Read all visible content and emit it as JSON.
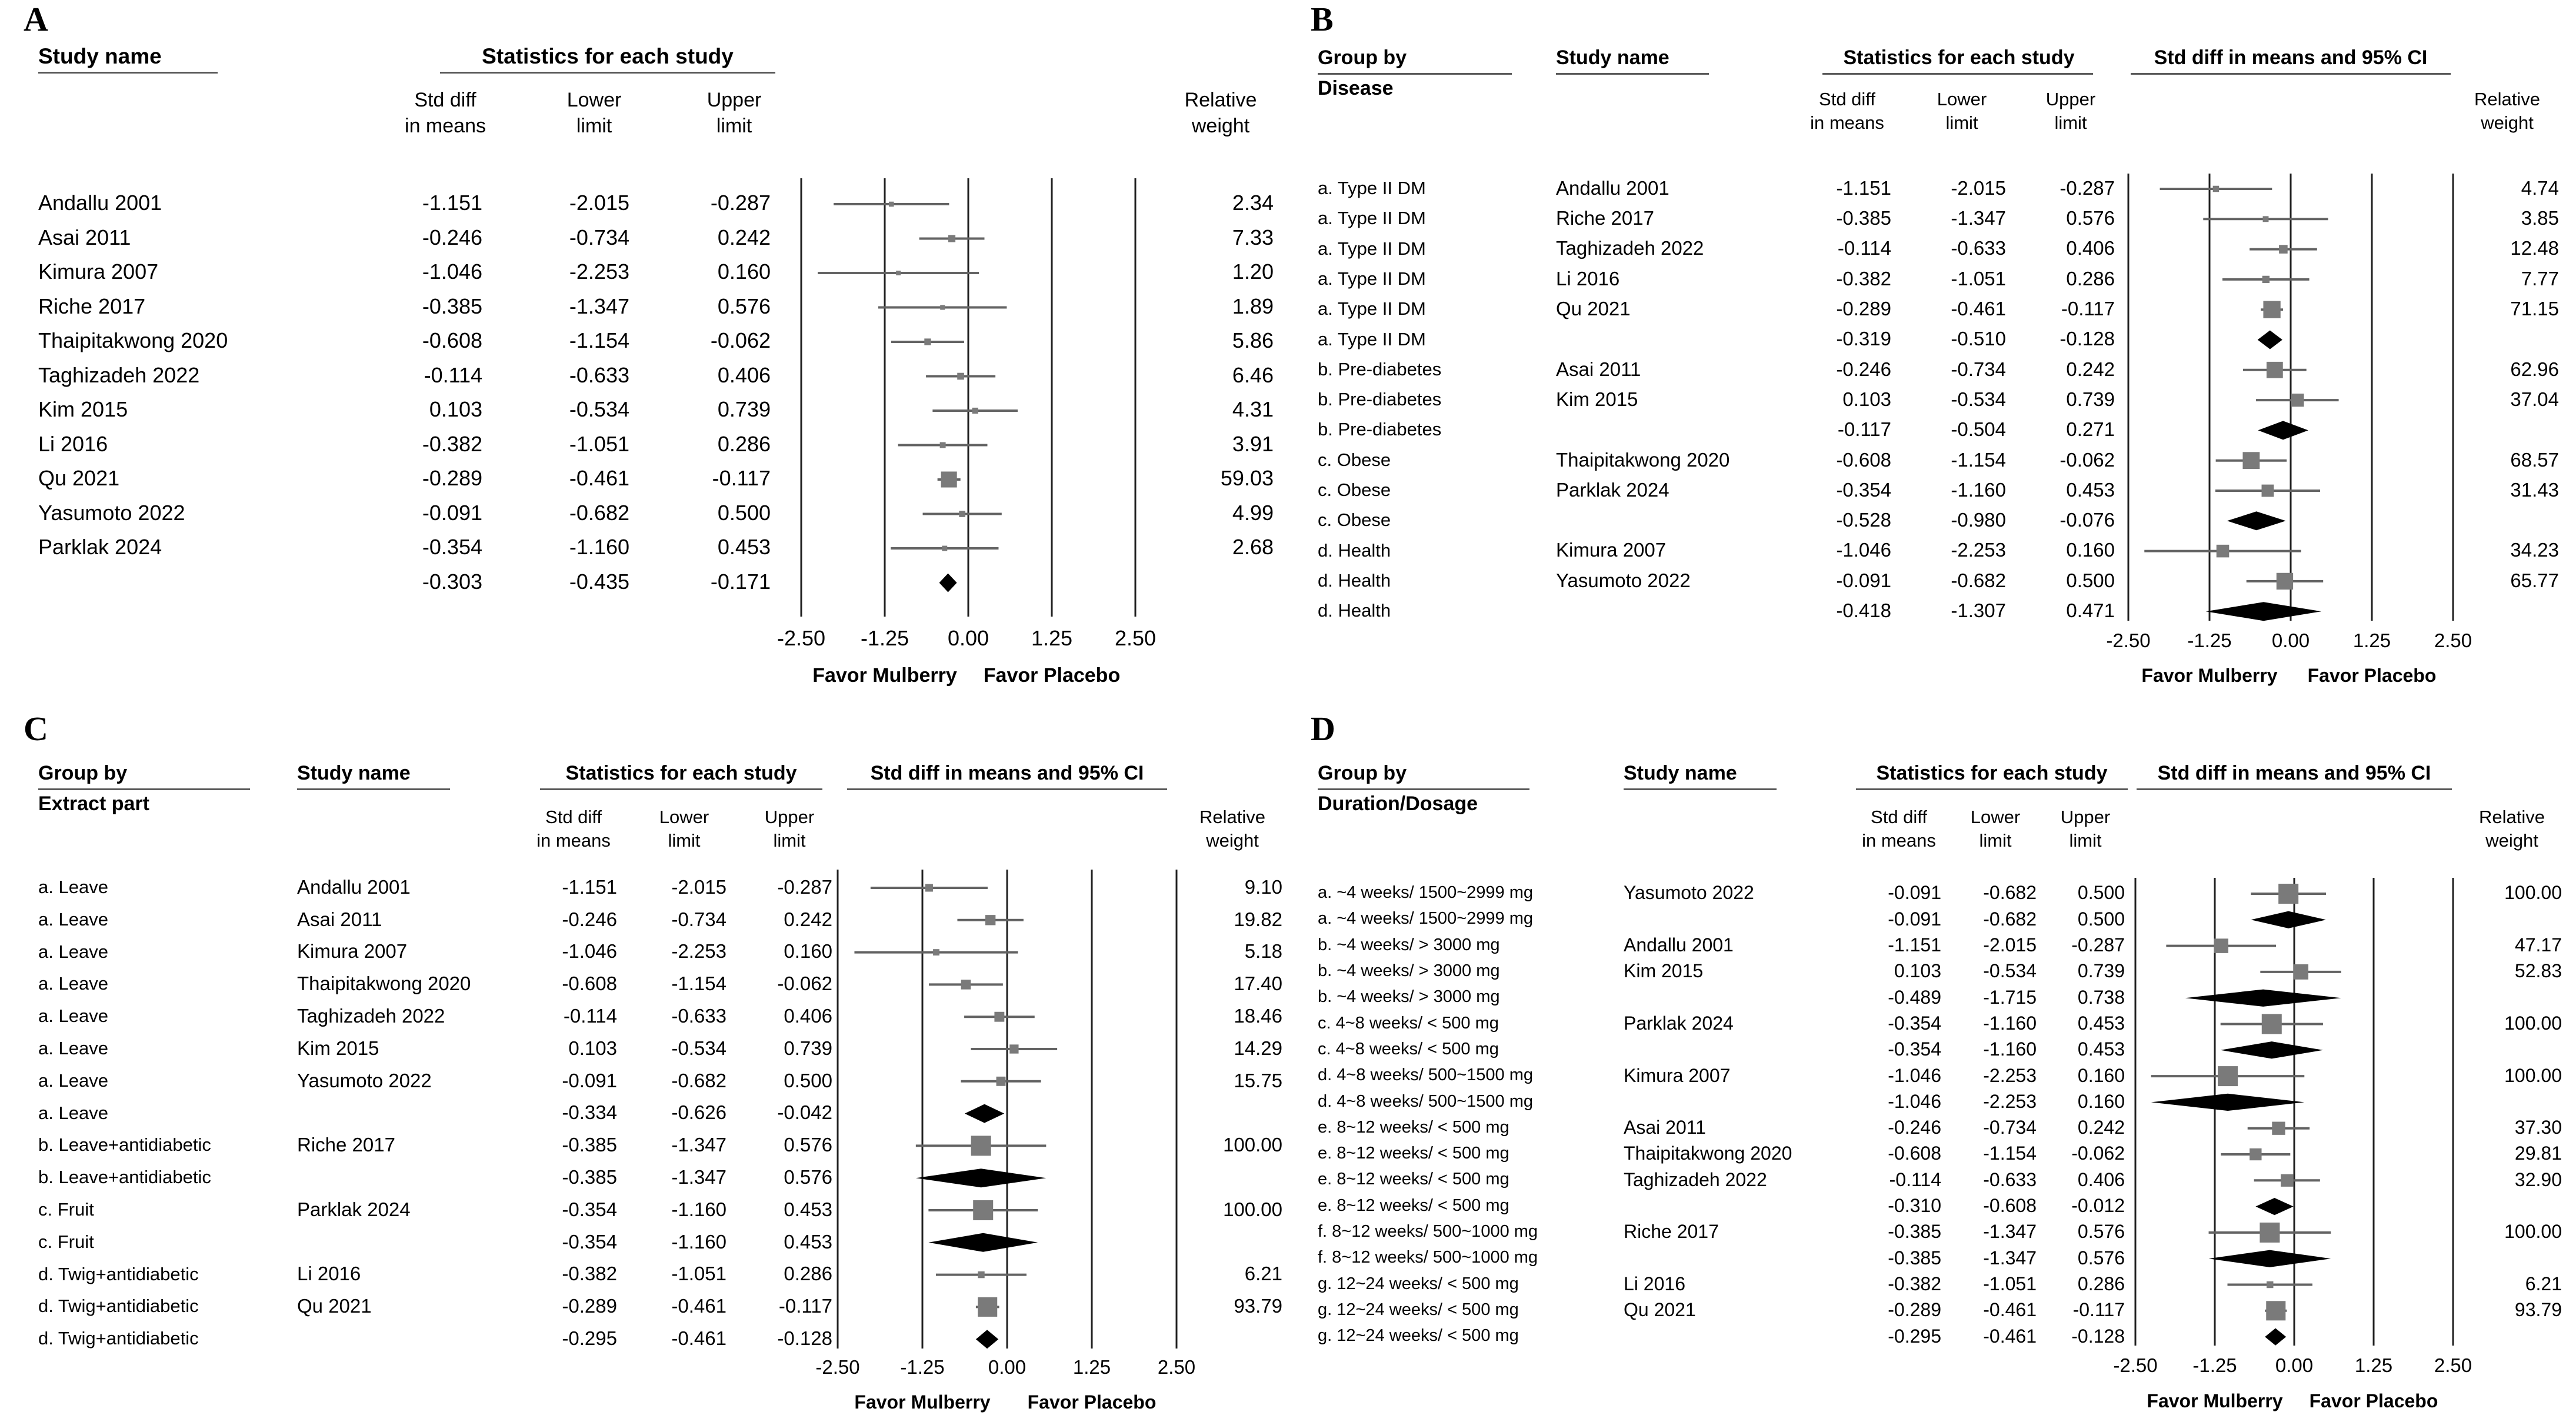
{
  "figure": {
    "panels": [
      {
        "letter": "A",
        "headers": {
          "group": null,
          "group_label": null,
          "study": "Study name",
          "stats": "Statistics for each study",
          "ci": null,
          "sub": [
            "Std diff",
            "in means",
            "Lower",
            "limit",
            "Upper",
            "limit"
          ],
          "weight": [
            "Relative",
            "weight"
          ]
        },
        "axis": {
          "tick_labels": [
            "-2.50",
            "-1.25",
            "0.00",
            "1.25",
            "2.50"
          ],
          "favor_left": "Favor Mulberry",
          "favor_right": "Favor Placebo"
        }
      },
      {
        "letter": "B",
        "headers": {
          "group": "Group by",
          "group_label": "Disease",
          "study": "Study name",
          "stats": "Statistics for each study",
          "ci": "Std diff in means and 95% CI",
          "sub": [
            "Std diff",
            "in means",
            "Lower",
            "limit",
            "Upper",
            "limit"
          ],
          "weight": [
            "Relative",
            "weight"
          ]
        },
        "axis": {
          "tick_labels": [
            "-2.50",
            "-1.25",
            "0.00",
            "1.25",
            "2.50"
          ],
          "favor_left": "Favor Mulberry",
          "favor_right": "Favor Placebo"
        }
      },
      {
        "letter": "C",
        "headers": {
          "group": "Group by",
          "group_label": "Extract part",
          "study": "Study name",
          "stats": "Statistics for each study",
          "ci": "Std diff in means and 95% CI",
          "sub": [
            "Std diff",
            "in means",
            "Lower",
            "limit",
            "Upper",
            "limit"
          ],
          "weight": [
            "Relative",
            "weight"
          ]
        },
        "axis": {
          "tick_labels": [
            "-2.50",
            "-1.25",
            "0.00",
            "1.25",
            "2.50"
          ],
          "favor_left": "Favor Mulberry",
          "favor_right": "Favor Placebo"
        }
      },
      {
        "letter": "D",
        "headers": {
          "group": "Group by",
          "group_label": "Duration/Dosage",
          "study": "Study name",
          "stats": "Statistics for each study",
          "ci": "Std diff in means and 95% CI",
          "sub": [
            "Std diff",
            "in means",
            "Lower",
            "limit",
            "Upper",
            "limit"
          ],
          "weight": [
            "Relative",
            "weight"
          ]
        },
        "axis": {
          "tick_labels": [
            "-2.50",
            "-1.25",
            "0.00",
            "1.25",
            "2.50"
          ],
          "favor_left": "Favor Mulberry",
          "favor_right": "Favor Placebo"
        }
      }
    ]
  },
  "chart_data": [
    {
      "type": "forest",
      "panel": "A",
      "group_by": null,
      "effect_measure": "Std diff in means",
      "xlim": [
        -2.5,
        2.5
      ],
      "x_ticks": [
        -2.5,
        -1.25,
        0,
        1.25,
        2.5
      ],
      "rows": [
        {
          "group": null,
          "study": "Andallu 2001",
          "est": -1.151,
          "lo": -2.015,
          "hi": -0.287,
          "weight": 2.34,
          "summary": false
        },
        {
          "group": null,
          "study": "Asai 2011",
          "est": -0.246,
          "lo": -0.734,
          "hi": 0.242,
          "weight": 7.33,
          "summary": false
        },
        {
          "group": null,
          "study": "Kimura 2007",
          "est": -1.046,
          "lo": -2.253,
          "hi": 0.16,
          "weight": 1.2,
          "summary": false
        },
        {
          "group": null,
          "study": "Riche 2017",
          "est": -0.385,
          "lo": -1.347,
          "hi": 0.576,
          "weight": 1.89,
          "summary": false
        },
        {
          "group": null,
          "study": "Thaipitakwong 2020",
          "est": -0.608,
          "lo": -1.154,
          "hi": -0.062,
          "weight": 5.86,
          "summary": false
        },
        {
          "group": null,
          "study": "Taghizadeh 2022",
          "est": -0.114,
          "lo": -0.633,
          "hi": 0.406,
          "weight": 6.46,
          "summary": false
        },
        {
          "group": null,
          "study": "Kim 2015",
          "est": 0.103,
          "lo": -0.534,
          "hi": 0.739,
          "weight": 4.31,
          "summary": false
        },
        {
          "group": null,
          "study": "Li 2016",
          "est": -0.382,
          "lo": -1.051,
          "hi": 0.286,
          "weight": 3.91,
          "summary": false
        },
        {
          "group": null,
          "study": "Qu 2021",
          "est": -0.289,
          "lo": -0.461,
          "hi": -0.117,
          "weight": 59.03,
          "summary": false
        },
        {
          "group": null,
          "study": "Yasumoto 2022",
          "est": -0.091,
          "lo": -0.682,
          "hi": 0.5,
          "weight": 4.99,
          "summary": false
        },
        {
          "group": null,
          "study": "Parklak 2024",
          "est": -0.354,
          "lo": -1.16,
          "hi": 0.453,
          "weight": 2.68,
          "summary": false
        },
        {
          "group": null,
          "study": null,
          "est": -0.303,
          "lo": -0.435,
          "hi": -0.171,
          "weight": null,
          "summary": true
        }
      ]
    },
    {
      "type": "forest",
      "panel": "B",
      "group_by": "Disease",
      "effect_measure": "Std diff in means",
      "xlim": [
        -2.5,
        2.5
      ],
      "x_ticks": [
        -2.5,
        -1.25,
        0,
        1.25,
        2.5
      ],
      "rows": [
        {
          "group": "a. Type II DM",
          "study": "Andallu 2001",
          "est": -1.151,
          "lo": -2.015,
          "hi": -0.287,
          "weight": 4.74,
          "summary": false
        },
        {
          "group": "a. Type II DM",
          "study": "Riche 2017",
          "est": -0.385,
          "lo": -1.347,
          "hi": 0.576,
          "weight": 3.85,
          "summary": false
        },
        {
          "group": "a. Type II DM",
          "study": "Taghizadeh 2022",
          "est": -0.114,
          "lo": -0.633,
          "hi": 0.406,
          "weight": 12.48,
          "summary": false
        },
        {
          "group": "a. Type II DM",
          "study": "Li 2016",
          "est": -0.382,
          "lo": -1.051,
          "hi": 0.286,
          "weight": 7.77,
          "summary": false
        },
        {
          "group": "a. Type II DM",
          "study": "Qu 2021",
          "est": -0.289,
          "lo": -0.461,
          "hi": -0.117,
          "weight": 71.15,
          "summary": false
        },
        {
          "group": "a. Type II DM",
          "study": null,
          "est": -0.319,
          "lo": -0.51,
          "hi": -0.128,
          "weight": null,
          "summary": true
        },
        {
          "group": "b. Pre-diabetes",
          "study": "Asai 2011",
          "est": -0.246,
          "lo": -0.734,
          "hi": 0.242,
          "weight": 62.96,
          "summary": false
        },
        {
          "group": "b. Pre-diabetes",
          "study": "Kim 2015",
          "est": 0.103,
          "lo": -0.534,
          "hi": 0.739,
          "weight": 37.04,
          "summary": false
        },
        {
          "group": "b. Pre-diabetes",
          "study": null,
          "est": -0.117,
          "lo": -0.504,
          "hi": 0.271,
          "weight": null,
          "summary": true
        },
        {
          "group": "c. Obese",
          "study": "Thaipitakwong 2020",
          "est": -0.608,
          "lo": -1.154,
          "hi": -0.062,
          "weight": 68.57,
          "summary": false
        },
        {
          "group": "c. Obese",
          "study": "Parklak 2024",
          "est": -0.354,
          "lo": -1.16,
          "hi": 0.453,
          "weight": 31.43,
          "summary": false
        },
        {
          "group": "c. Obese",
          "study": null,
          "est": -0.528,
          "lo": -0.98,
          "hi": -0.076,
          "weight": null,
          "summary": true
        },
        {
          "group": "d. Health",
          "study": "Kimura 2007",
          "est": -1.046,
          "lo": -2.253,
          "hi": 0.16,
          "weight": 34.23,
          "summary": false
        },
        {
          "group": "d. Health",
          "study": "Yasumoto 2022",
          "est": -0.091,
          "lo": -0.682,
          "hi": 0.5,
          "weight": 65.77,
          "summary": false
        },
        {
          "group": "d. Health",
          "study": null,
          "est": -0.418,
          "lo": -1.307,
          "hi": 0.471,
          "weight": null,
          "summary": true
        }
      ]
    },
    {
      "type": "forest",
      "panel": "C",
      "group_by": "Extract part",
      "effect_measure": "Std diff in means",
      "xlim": [
        -2.5,
        2.5
      ],
      "x_ticks": [
        -2.5,
        -1.25,
        0,
        1.25,
        2.5
      ],
      "rows": [
        {
          "group": "a. Leave",
          "study": "Andallu 2001",
          "est": -1.151,
          "lo": -2.015,
          "hi": -0.287,
          "weight": 9.1,
          "summary": false
        },
        {
          "group": "a. Leave",
          "study": "Asai 2011",
          "est": -0.246,
          "lo": -0.734,
          "hi": 0.242,
          "weight": 19.82,
          "summary": false
        },
        {
          "group": "a. Leave",
          "study": "Kimura 2007",
          "est": -1.046,
          "lo": -2.253,
          "hi": 0.16,
          "weight": 5.18,
          "summary": false
        },
        {
          "group": "a. Leave",
          "study": "Thaipitakwong 2020",
          "est": -0.608,
          "lo": -1.154,
          "hi": -0.062,
          "weight": 17.4,
          "summary": false
        },
        {
          "group": "a. Leave",
          "study": "Taghizadeh 2022",
          "est": -0.114,
          "lo": -0.633,
          "hi": 0.406,
          "weight": 18.46,
          "summary": false
        },
        {
          "group": "a. Leave",
          "study": "Kim 2015",
          "est": 0.103,
          "lo": -0.534,
          "hi": 0.739,
          "weight": 14.29,
          "summary": false
        },
        {
          "group": "a. Leave",
          "study": "Yasumoto 2022",
          "est": -0.091,
          "lo": -0.682,
          "hi": 0.5,
          "weight": 15.75,
          "summary": false
        },
        {
          "group": "a. Leave",
          "study": null,
          "est": -0.334,
          "lo": -0.626,
          "hi": -0.042,
          "weight": null,
          "summary": true
        },
        {
          "group": "b. Leave+antidiabetic",
          "study": "Riche 2017",
          "est": -0.385,
          "lo": -1.347,
          "hi": 0.576,
          "weight": 100.0,
          "summary": false
        },
        {
          "group": "b. Leave+antidiabetic",
          "study": null,
          "est": -0.385,
          "lo": -1.347,
          "hi": 0.576,
          "weight": null,
          "summary": true
        },
        {
          "group": "c. Fruit",
          "study": "Parklak 2024",
          "est": -0.354,
          "lo": -1.16,
          "hi": 0.453,
          "weight": 100.0,
          "summary": false
        },
        {
          "group": "c. Fruit",
          "study": null,
          "est": -0.354,
          "lo": -1.16,
          "hi": 0.453,
          "weight": null,
          "summary": true
        },
        {
          "group": "d. Twig+antidiabetic",
          "study": "Li 2016",
          "est": -0.382,
          "lo": -1.051,
          "hi": 0.286,
          "weight": 6.21,
          "summary": false
        },
        {
          "group": "d. Twig+antidiabetic",
          "study": "Qu 2021",
          "est": -0.289,
          "lo": -0.461,
          "hi": -0.117,
          "weight": 93.79,
          "summary": false
        },
        {
          "group": "d. Twig+antidiabetic",
          "study": null,
          "est": -0.295,
          "lo": -0.461,
          "hi": -0.128,
          "weight": null,
          "summary": true
        }
      ]
    },
    {
      "type": "forest",
      "panel": "D",
      "group_by": "Duration/Dosage",
      "effect_measure": "Std diff in means",
      "xlim": [
        -2.5,
        2.5
      ],
      "x_ticks": [
        -2.5,
        -1.25,
        0,
        1.25,
        2.5
      ],
      "rows": [
        {
          "group": "a. ~4 weeks/ 1500~2999 mg",
          "study": "Yasumoto 2022",
          "est": -0.091,
          "lo": -0.682,
          "hi": 0.5,
          "weight": 100.0,
          "summary": false
        },
        {
          "group": "a. ~4 weeks/ 1500~2999 mg",
          "study": null,
          "est": -0.091,
          "lo": -0.682,
          "hi": 0.5,
          "weight": null,
          "summary": true
        },
        {
          "group": "b. ~4 weeks/ > 3000 mg",
          "study": "Andallu 2001",
          "est": -1.151,
          "lo": -2.015,
          "hi": -0.287,
          "weight": 47.17,
          "summary": false
        },
        {
          "group": "b. ~4 weeks/ > 3000 mg",
          "study": "Kim 2015",
          "est": 0.103,
          "lo": -0.534,
          "hi": 0.739,
          "weight": 52.83,
          "summary": false
        },
        {
          "group": "b. ~4 weeks/ > 3000 mg",
          "study": null,
          "est": -0.489,
          "lo": -1.715,
          "hi": 0.738,
          "weight": null,
          "summary": true
        },
        {
          "group": "c. 4~8 weeks/ < 500 mg",
          "study": "Parklak 2024",
          "est": -0.354,
          "lo": -1.16,
          "hi": 0.453,
          "weight": 100.0,
          "summary": false
        },
        {
          "group": "c. 4~8 weeks/ < 500 mg",
          "study": null,
          "est": -0.354,
          "lo": -1.16,
          "hi": 0.453,
          "weight": null,
          "summary": true
        },
        {
          "group": "d. 4~8 weeks/ 500~1500 mg",
          "study": "Kimura 2007",
          "est": -1.046,
          "lo": -2.253,
          "hi": 0.16,
          "weight": 100.0,
          "summary": false
        },
        {
          "group": "d. 4~8 weeks/ 500~1500 mg",
          "study": null,
          "est": -1.046,
          "lo": -2.253,
          "hi": 0.16,
          "weight": null,
          "summary": true
        },
        {
          "group": "e. 8~12 weeks/ < 500 mg",
          "study": "Asai 2011",
          "est": -0.246,
          "lo": -0.734,
          "hi": 0.242,
          "weight": 37.3,
          "summary": false
        },
        {
          "group": "e. 8~12 weeks/ < 500 mg",
          "study": "Thaipitakwong 2020",
          "est": -0.608,
          "lo": -1.154,
          "hi": -0.062,
          "weight": 29.81,
          "summary": false
        },
        {
          "group": "e. 8~12 weeks/ < 500 mg",
          "study": "Taghizadeh 2022",
          "est": -0.114,
          "lo": -0.633,
          "hi": 0.406,
          "weight": 32.9,
          "summary": false
        },
        {
          "group": "e. 8~12 weeks/ < 500 mg",
          "study": null,
          "est": -0.31,
          "lo": -0.608,
          "hi": -0.012,
          "weight": null,
          "summary": true
        },
        {
          "group": "f. 8~12 weeks/ 500~1000 mg",
          "study": "Riche 2017",
          "est": -0.385,
          "lo": -1.347,
          "hi": 0.576,
          "weight": 100.0,
          "summary": false
        },
        {
          "group": "f. 8~12 weeks/ 500~1000 mg",
          "study": null,
          "est": -0.385,
          "lo": -1.347,
          "hi": 0.576,
          "weight": null,
          "summary": true
        },
        {
          "group": "g. 12~24 weeks/ < 500 mg",
          "study": "Li 2016",
          "est": -0.382,
          "lo": -1.051,
          "hi": 0.286,
          "weight": 6.21,
          "summary": false
        },
        {
          "group": "g. 12~24 weeks/ < 500 mg",
          "study": "Qu 2021",
          "est": -0.289,
          "lo": -0.461,
          "hi": -0.117,
          "weight": 93.79,
          "summary": false
        },
        {
          "group": "g. 12~24 weeks/ < 500 mg",
          "study": null,
          "est": -0.295,
          "lo": -0.461,
          "hi": -0.128,
          "weight": null,
          "summary": true
        }
      ]
    }
  ]
}
